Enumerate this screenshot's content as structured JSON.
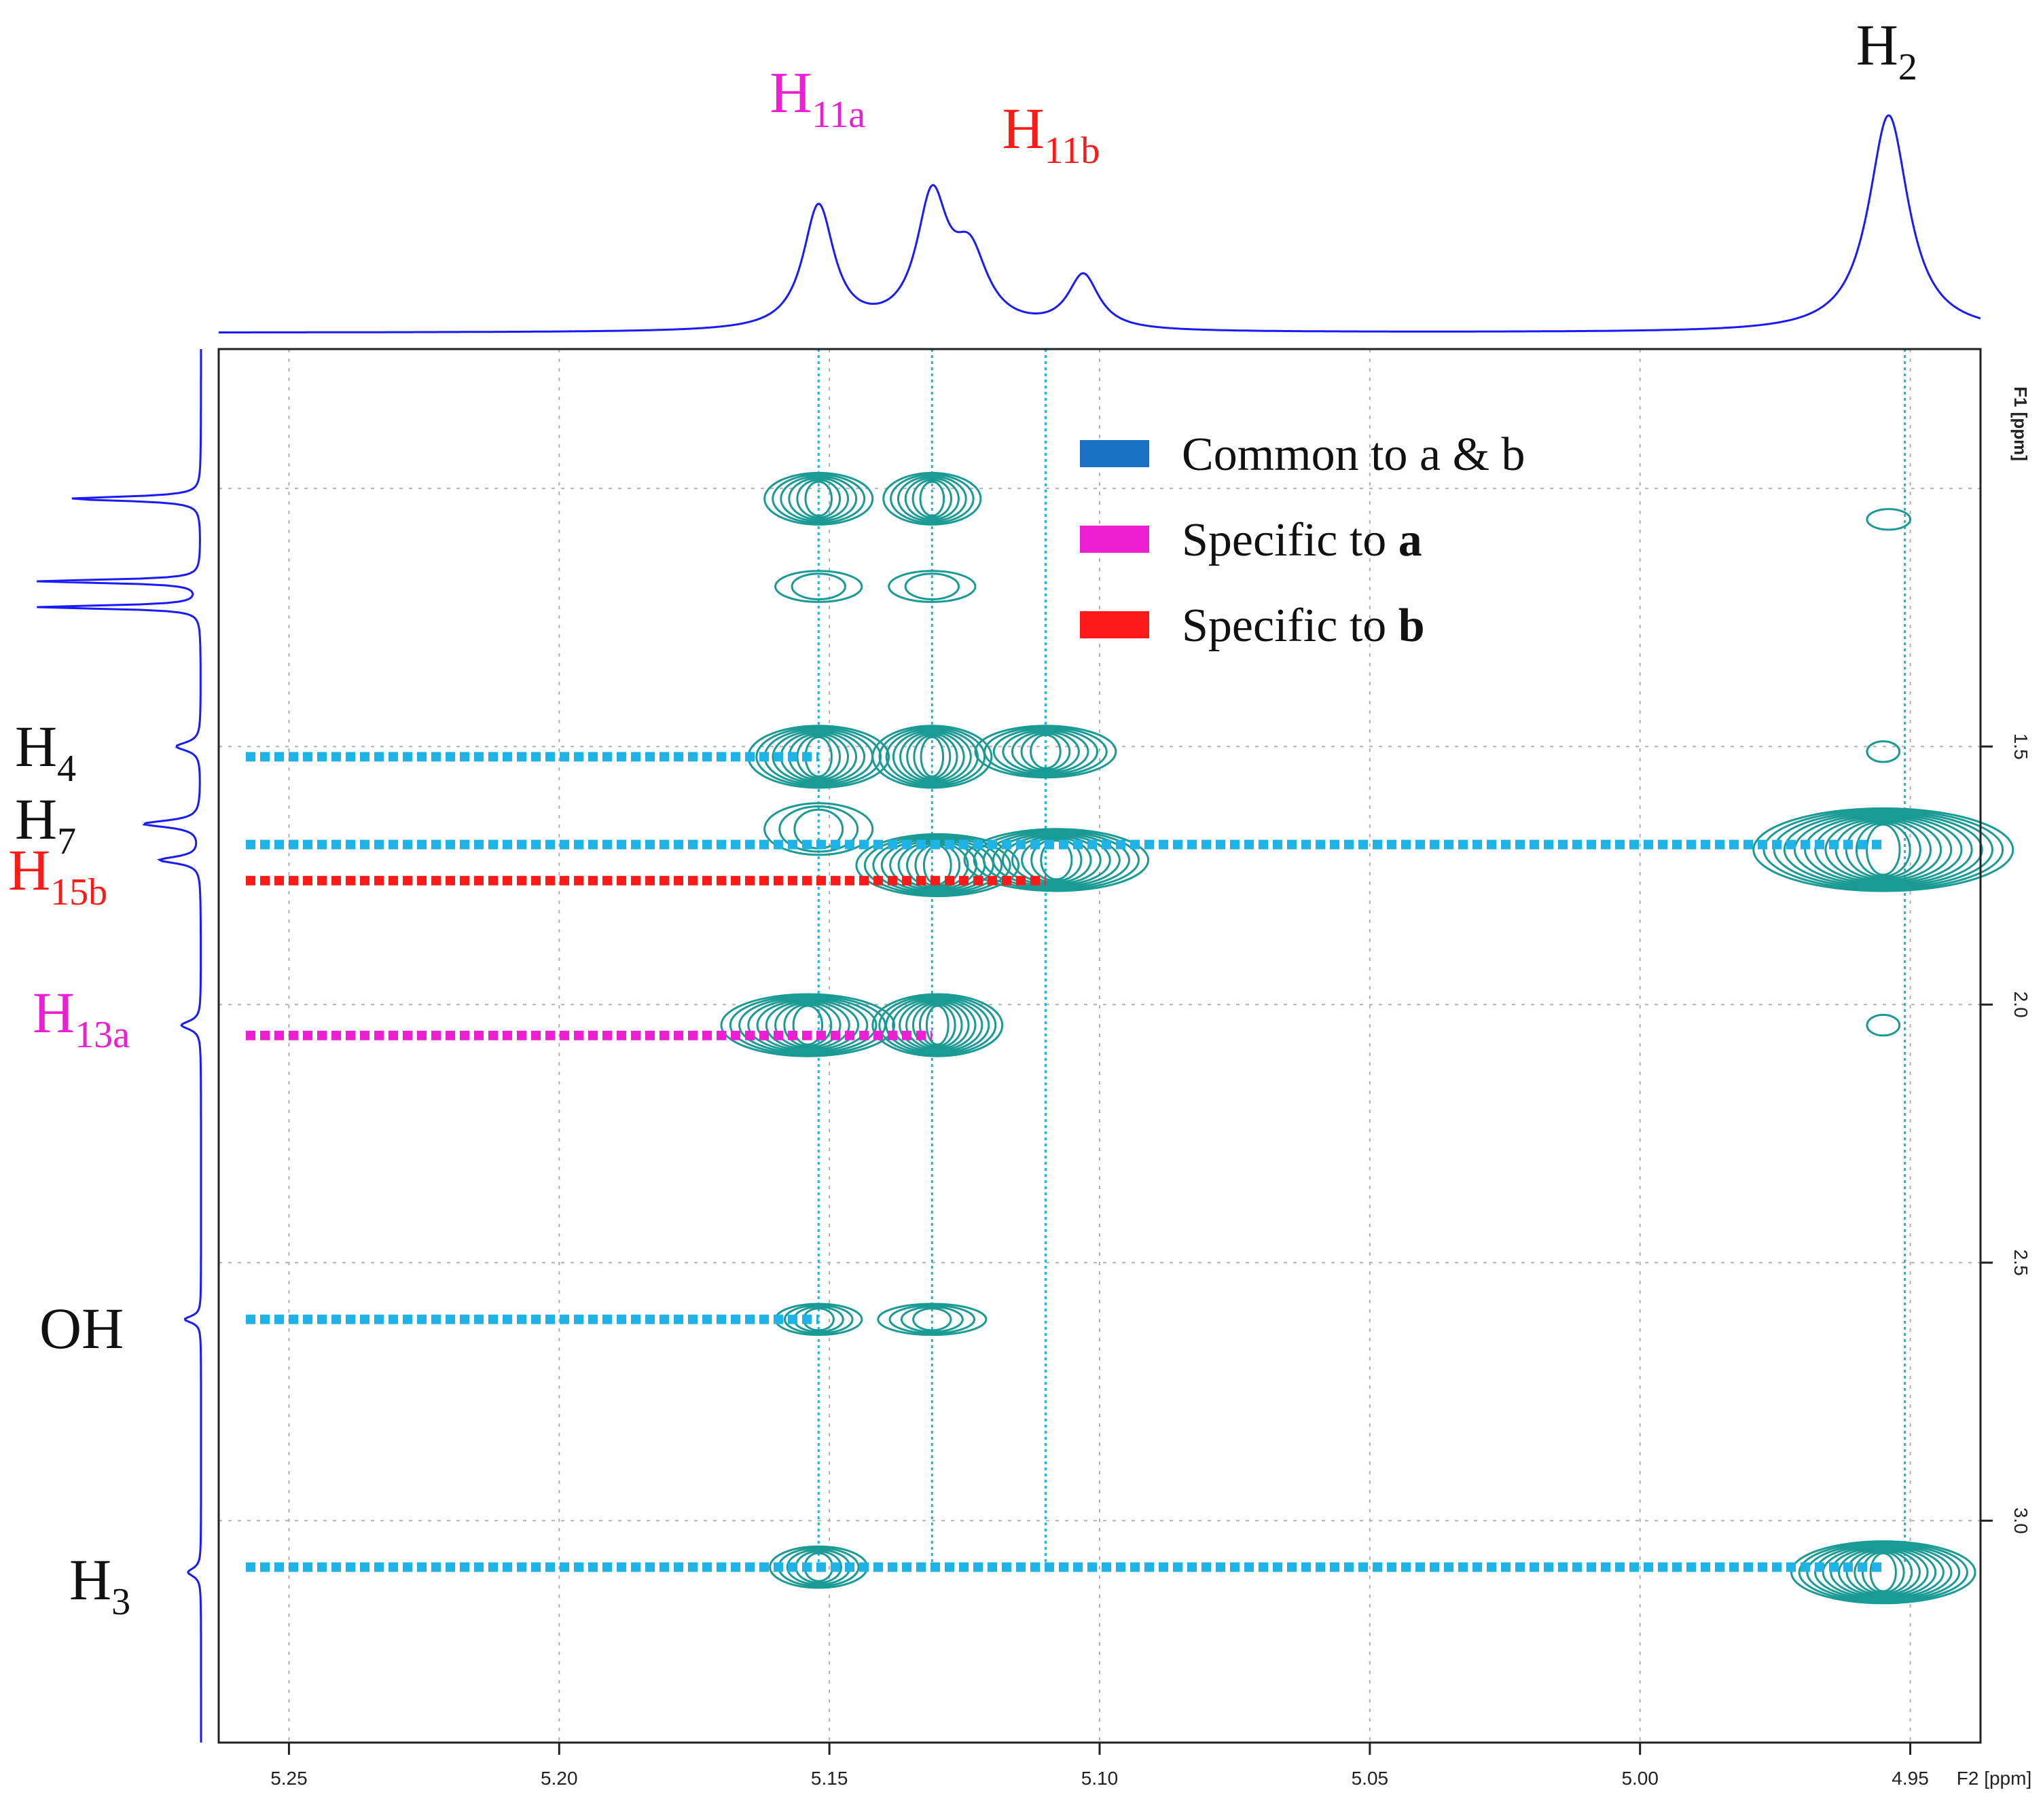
{
  "chart_data": {
    "type": "2d-nmr-contour",
    "x_axis": {
      "label": "F2 [ppm]",
      "range": [
        5.263,
        4.937
      ],
      "ticks": [
        5.25,
        5.2,
        5.15,
        5.1,
        5.05,
        5.0,
        4.95
      ],
      "tick_labels": [
        "5.25",
        "5.20",
        "5.15",
        "5.10",
        "5.05",
        "5.00",
        "4.95"
      ]
    },
    "y_axis": {
      "label": "F1 [ppm]",
      "range": [
        0.73,
        3.43
      ],
      "ticks": [
        1.5,
        2.0,
        2.5,
        3.0
      ],
      "tick_labels": [
        "1.5",
        "2.0",
        "2.5",
        "3.0"
      ]
    },
    "colors": {
      "common": "#1fb2e6",
      "specific_a": "#ee1fd2",
      "specific_b": "#ff1a1a",
      "contour": "#1a9a94",
      "spectrum": "#1a1aff",
      "grid": "#b0b0b0"
    },
    "top_spectrum_labels": [
      {
        "base": "H",
        "sub": "11a",
        "ppm": 5.151,
        "color": "#ee1fd2"
      },
      {
        "base": "H",
        "sub": "11b",
        "ppm": 5.108,
        "color": "#ff1a1a"
      },
      {
        "base": "H",
        "sub": "2",
        "ppm": 4.954,
        "color": "#111111"
      }
    ],
    "left_labels": [
      {
        "base": "H",
        "sub": "4",
        "ppm": 1.51,
        "color": "#111111"
      },
      {
        "base": "H",
        "sub": "7",
        "ppm": 1.66,
        "color": "#111111"
      },
      {
        "base": "H",
        "sub": "15b",
        "ppm": 1.76,
        "color": "#ff1a1a"
      },
      {
        "base": "H",
        "sub": "13a",
        "ppm": 2.05,
        "color": "#ee1fd2"
      },
      {
        "base": "OH",
        "sub": "",
        "ppm": 2.61,
        "color": "#111111"
      },
      {
        "base": "H",
        "sub": "3",
        "ppm": 3.11,
        "color": "#111111"
      }
    ],
    "vertical_guides_ppm": [
      5.152,
      5.131,
      5.11,
      4.951
    ],
    "correlation_lines": [
      {
        "f1": 1.52,
        "to_f2": 5.152,
        "kind": "common"
      },
      {
        "f1": 1.69,
        "to_f2": 4.955,
        "kind": "common"
      },
      {
        "f1": 1.76,
        "to_f2": 5.11,
        "kind": "specific_b"
      },
      {
        "f1": 2.06,
        "to_f2": 5.131,
        "kind": "specific_a"
      },
      {
        "f1": 2.61,
        "to_f2": 5.152,
        "kind": "common"
      },
      {
        "f1": 3.09,
        "to_f2": 4.955,
        "kind": "common"
      }
    ],
    "cross_peaks": [
      {
        "f2": 5.152,
        "f1": 1.02,
        "rx": 0.01,
        "ry": 0.05,
        "levels": 6
      },
      {
        "f2": 5.131,
        "f1": 1.02,
        "rx": 0.009,
        "ry": 0.05,
        "levels": 6
      },
      {
        "f2": 5.152,
        "f1": 1.19,
        "rx": 0.008,
        "ry": 0.03,
        "levels": 2
      },
      {
        "f2": 5.131,
        "f1": 1.19,
        "rx": 0.008,
        "ry": 0.03,
        "levels": 2
      },
      {
        "f2": 4.954,
        "f1": 1.06,
        "rx": 0.004,
        "ry": 0.02,
        "levels": 1
      },
      {
        "f2": 5.152,
        "f1": 1.52,
        "rx": 0.013,
        "ry": 0.06,
        "levels": 8
      },
      {
        "f2": 5.131,
        "f1": 1.52,
        "rx": 0.011,
        "ry": 0.06,
        "levels": 8
      },
      {
        "f2": 5.11,
        "f1": 1.51,
        "rx": 0.013,
        "ry": 0.05,
        "levels": 7
      },
      {
        "f2": 4.955,
        "f1": 1.51,
        "rx": 0.003,
        "ry": 0.02,
        "levels": 1
      },
      {
        "f2": 5.152,
        "f1": 1.66,
        "rx": 0.01,
        "ry": 0.05,
        "levels": 3
      },
      {
        "f2": 5.13,
        "f1": 1.73,
        "rx": 0.015,
        "ry": 0.06,
        "levels": 9
      },
      {
        "f2": 5.108,
        "f1": 1.72,
        "rx": 0.017,
        "ry": 0.06,
        "levels": 9
      },
      {
        "f2": 4.955,
        "f1": 1.7,
        "rx": 0.024,
        "ry": 0.08,
        "levels": 12
      },
      {
        "f2": 5.154,
        "f1": 2.04,
        "rx": 0.016,
        "ry": 0.06,
        "levels": 9
      },
      {
        "f2": 5.13,
        "f1": 2.04,
        "rx": 0.012,
        "ry": 0.06,
        "levels": 9
      },
      {
        "f2": 4.955,
        "f1": 2.04,
        "rx": 0.003,
        "ry": 0.02,
        "levels": 1
      },
      {
        "f2": 5.152,
        "f1": 2.61,
        "rx": 0.008,
        "ry": 0.03,
        "levels": 4
      },
      {
        "f2": 5.131,
        "f1": 2.61,
        "rx": 0.01,
        "ry": 0.03,
        "levels": 4
      },
      {
        "f2": 5.152,
        "f1": 3.09,
        "rx": 0.009,
        "ry": 0.04,
        "levels": 5
      },
      {
        "f2": 4.955,
        "f1": 3.1,
        "rx": 0.017,
        "ry": 0.06,
        "levels": 11
      }
    ],
    "top_spectrum_peaks": [
      {
        "ppm": 5.152,
        "height": 0.57,
        "width": 0.0035
      },
      {
        "ppm": 5.131,
        "height": 0.58,
        "width": 0.0035
      },
      {
        "ppm": 5.124,
        "height": 0.32,
        "width": 0.004
      },
      {
        "ppm": 5.103,
        "height": 0.25,
        "width": 0.0035
      },
      {
        "ppm": 4.954,
        "height": 1.0,
        "width": 0.0045
      }
    ],
    "left_spectrum_peaks": [
      {
        "ppm": 1.02,
        "height": 0.8,
        "width": 0.005
      },
      {
        "ppm": 1.18,
        "height": 1.0,
        "width": 0.004
      },
      {
        "ppm": 1.23,
        "height": 1.0,
        "width": 0.004
      },
      {
        "ppm": 1.5,
        "height": 0.15,
        "width": 0.01
      },
      {
        "ppm": 1.65,
        "height": 0.35,
        "width": 0.008
      },
      {
        "ppm": 1.72,
        "height": 0.25,
        "width": 0.008
      },
      {
        "ppm": 2.04,
        "height": 0.12,
        "width": 0.01
      },
      {
        "ppm": 2.61,
        "height": 0.1,
        "width": 0.008
      },
      {
        "ppm": 3.1,
        "height": 0.08,
        "width": 0.01
      }
    ],
    "legend": [
      {
        "label": "Common to a & b",
        "color": "#1a72c4",
        "bold_suffix": ""
      },
      {
        "label": "Specific to ",
        "color": "#ee1fd2",
        "bold_suffix": "a"
      },
      {
        "label": "Specific to ",
        "color": "#ff1a1a",
        "bold_suffix": "b"
      }
    ]
  }
}
